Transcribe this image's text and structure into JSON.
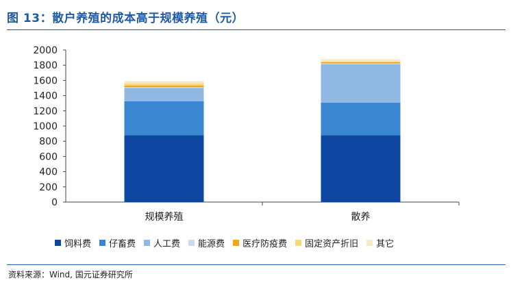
{
  "header": {
    "title": "图 13：散户养殖的成本高于规模养殖（元）"
  },
  "footer": {
    "source": "资料来源：Wind, 国元证券研究所"
  },
  "colors": {
    "feed": "#0d47a1",
    "livestock": "#3a86d0",
    "labor": "#8fb8e3",
    "energy": "#c9dcf0",
    "medical": "#f2a71b",
    "depreciation": "#f7d87a",
    "other": "#fbe9c6",
    "axis": "#444444",
    "title": "#1f5aa6"
  },
  "chart_data": {
    "type": "bar",
    "stacked": true,
    "title": "散户养殖的成本高于规模养殖（元）",
    "categories": [
      "规模养殖",
      "散养"
    ],
    "ylim": [
      0,
      2000
    ],
    "yticks": [
      0,
      200,
      400,
      600,
      800,
      1000,
      1200,
      1400,
      1600,
      1800,
      2000
    ],
    "grid": false,
    "legend_position": "bottom",
    "series": [
      {
        "name": "饲料费",
        "key": "feed",
        "values": [
          878,
          880
        ]
      },
      {
        "name": "仔畜费",
        "key": "livestock",
        "values": [
          447,
          428
        ]
      },
      {
        "name": "人工费",
        "key": "labor",
        "values": [
          175,
          505
        ]
      },
      {
        "name": "能源费",
        "key": "energy",
        "values": [
          12,
          10
        ]
      },
      {
        "name": "医疗防疫费",
        "key": "medical",
        "values": [
          20,
          18
        ]
      },
      {
        "name": "固定资产折旧",
        "key": "depreciation",
        "values": [
          30,
          8
        ]
      },
      {
        "name": "其它",
        "key": "other",
        "values": [
          28,
          32
        ]
      }
    ]
  }
}
